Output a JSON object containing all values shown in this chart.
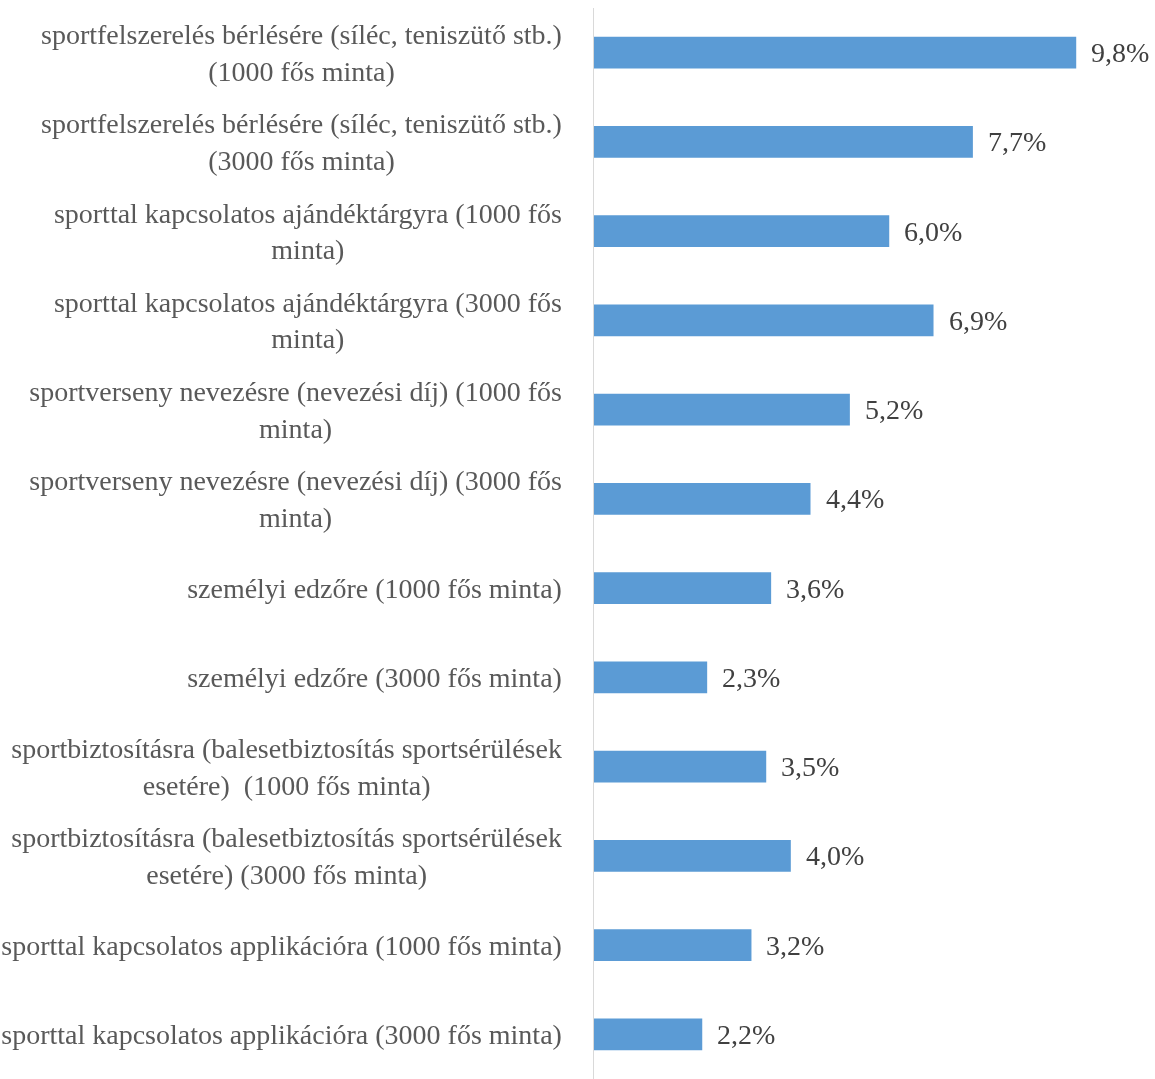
{
  "chart_data": {
    "type": "bar",
    "orientation": "horizontal",
    "color": "#5b9bd5",
    "categories": [
      "sportfelszerelés bérlésére (síléc, teniszütő stb.) (1000 fős minta)",
      "sportfelszerelés bérlésére (síléc, teniszütő stb.) (3000 fős minta)",
      "sporttal kapcsolatos ajándéktárgyra (1000 fős minta)",
      "sporttal kapcsolatos ajándéktárgyra (3000 fős minta)",
      "sportverseny nevezésre (nevezési díj) (1000 fős minta)",
      "sportverseny nevezésre (nevezési díj) (3000 fős minta)",
      "személyi edzőre (1000 fős minta)",
      "személyi edzőre (3000 fős minta)",
      "sportbiztosításra (balesetbiztosítás sportsérülések esetére)  (1000 fős minta)",
      "sportbiztosításra (balesetbiztosítás sportsérülések esetére) (3000 fős minta)",
      "sporttal kapcsolatos applikációra (1000 fős minta)",
      "sporttal kapcsolatos applikációra (3000 fős minta)"
    ],
    "values": [
      9.8,
      7.7,
      6.0,
      6.9,
      5.2,
      4.4,
      3.6,
      2.3,
      3.5,
      4.0,
      3.2,
      2.2
    ],
    "value_labels": [
      "9,8%",
      "7,7%",
      "6,0%",
      "6,9%",
      "5,2%",
      "4,4%",
      "3,6%",
      "2,3%",
      "3,5%",
      "4,0%",
      "3,2%",
      "2,2%"
    ]
  }
}
